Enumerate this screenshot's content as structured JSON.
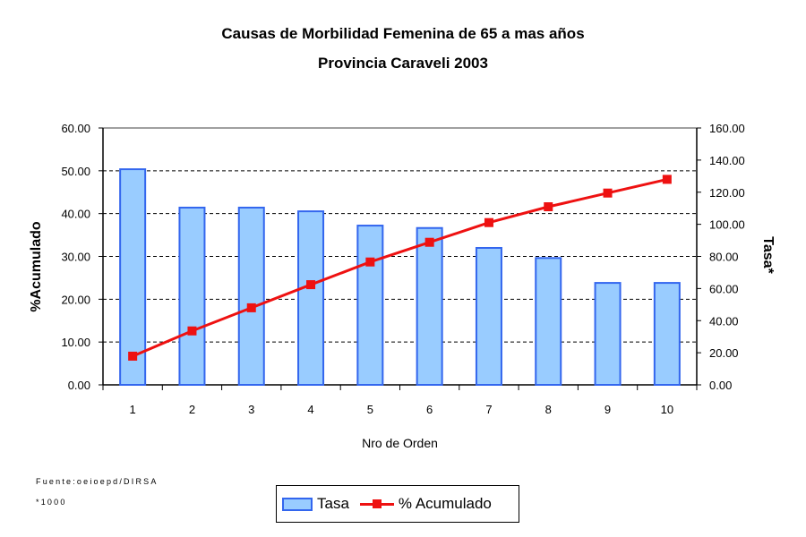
{
  "chart_data": {
    "type": "bar+line",
    "title": "Causas de Morbilidad Femenina de 65 a mas años",
    "subtitle": "Provincia Caraveli 2003",
    "xlabel": "Nro de Orden",
    "ylabel_left": "%Acumulado",
    "ylabel_right": "Tasa*",
    "categories": [
      "1",
      "2",
      "3",
      "4",
      "5",
      "6",
      "7",
      "8",
      "9",
      "10"
    ],
    "ylim_left": [
      0,
      60
    ],
    "ylim_right": [
      0,
      160
    ],
    "left_ticks": [
      "0.00",
      "10.00",
      "20.00",
      "30.00",
      "40.00",
      "50.00",
      "60.00"
    ],
    "right_ticks": [
      "0.00",
      "20.00",
      "40.00",
      "60.00",
      "80.00",
      "100.00",
      "120.00",
      "140.00",
      "160.00"
    ],
    "series": [
      {
        "name": "Tasa",
        "type": "bar",
        "axis": "right",
        "color": "#99ccff",
        "edge": "#3366ee",
        "values": [
          134.3,
          110.4,
          110.4,
          108.1,
          99.2,
          97.7,
          85.3,
          79.0,
          63.5,
          63.5
        ]
      },
      {
        "name": "% Acumulado",
        "type": "line",
        "axis": "left",
        "color": "#ee1111",
        "values": [
          6.7,
          12.6,
          18.0,
          23.4,
          28.7,
          33.3,
          37.9,
          41.6,
          44.8,
          48.0
        ]
      }
    ],
    "grid": true,
    "legend": "bottom-center"
  },
  "notes": {
    "source": "Fuente:oeioepd/DIRSA",
    "footnote": "*1000"
  }
}
